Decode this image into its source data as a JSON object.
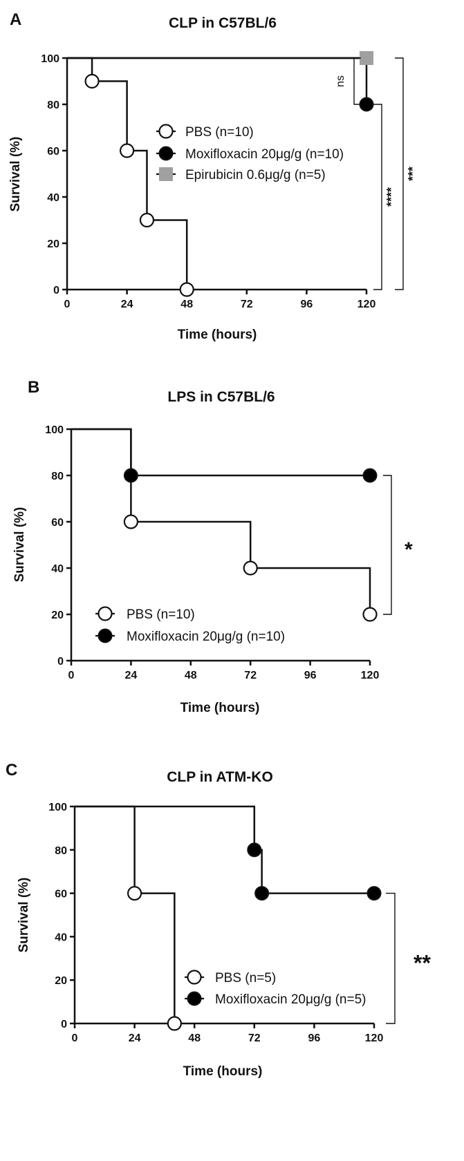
{
  "colors": {
    "axis": "#111111",
    "pbs_marker": "#ffffff",
    "moxi_marker": "#000000",
    "epi_marker": "#a0a0a0"
  },
  "chart_data": [
    {
      "type": "line",
      "panel": "A",
      "title": "CLP in C57BL/6",
      "xlabel": "Time (hours)",
      "ylabel": "Survival (%)",
      "xlim": [
        0,
        120
      ],
      "ylim": [
        0,
        100
      ],
      "xticks": [
        0,
        24,
        48,
        72,
        96,
        120
      ],
      "yticks": [
        0,
        20,
        40,
        60,
        80,
        100
      ],
      "legend_position": "center",
      "series": [
        {
          "name": "PBS (n=10)",
          "marker": "open-circle",
          "x": [
            0,
            10,
            24,
            32,
            48
          ],
          "y": [
            100,
            90,
            60,
            30,
            0
          ],
          "censor_x": [
            10,
            24,
            32,
            48
          ],
          "censor_y": [
            90,
            60,
            30,
            0
          ]
        },
        {
          "name": "Moxifloxacin 20μg/g (n=10)",
          "marker": "filled-circle",
          "x": [
            0,
            120
          ],
          "y": [
            100,
            80
          ],
          "censor_x": [
            120
          ],
          "censor_y": [
            80
          ]
        },
        {
          "name": "Epirubicin 0.6μg/g (n=5)",
          "marker": "gray-square",
          "x": [
            0,
            120
          ],
          "y": [
            100,
            100
          ],
          "censor_x": [
            120
          ],
          "censor_y": [
            100
          ]
        }
      ],
      "significance": [
        {
          "label": "ns",
          "y_top": 100,
          "y_bottom": 80
        },
        {
          "label": "****",
          "y_top": 80,
          "y_bottom": 0
        },
        {
          "label": "***",
          "y_top": 100,
          "y_bottom": 0
        }
      ]
    },
    {
      "type": "line",
      "panel": "B",
      "title": "LPS in C57BL/6",
      "xlabel": "Time (hours)",
      "ylabel": "Survival (%)",
      "xlim": [
        0,
        120
      ],
      "ylim": [
        0,
        100
      ],
      "xticks": [
        0,
        24,
        48,
        72,
        96,
        120
      ],
      "yticks": [
        0,
        20,
        40,
        60,
        80,
        100
      ],
      "legend_position": "bottom-left",
      "series": [
        {
          "name": "PBS (n=10)",
          "marker": "open-circle",
          "x": [
            0,
            24,
            72,
            120
          ],
          "y": [
            100,
            60,
            40,
            20
          ],
          "censor_x": [
            24,
            72,
            120
          ],
          "censor_y": [
            60,
            40,
            20
          ]
        },
        {
          "name": "Moxifloxacin 20μg/g (n=10)",
          "marker": "filled-circle",
          "x": [
            0,
            24,
            120
          ],
          "y": [
            100,
            80,
            80
          ],
          "censor_x": [
            24,
            120
          ],
          "censor_y": [
            80,
            80
          ]
        }
      ],
      "significance": [
        {
          "label": "*",
          "y_top": 80,
          "y_bottom": 20
        }
      ]
    },
    {
      "type": "line",
      "panel": "C",
      "title": "CLP in ATM-KO",
      "xlabel": "Time (hours)",
      "ylabel": "Survival (%)",
      "xlim": [
        0,
        120
      ],
      "ylim": [
        0,
        100
      ],
      "xticks": [
        0,
        24,
        48,
        72,
        96,
        120
      ],
      "yticks": [
        0,
        20,
        40,
        60,
        80,
        100
      ],
      "legend_position": "bottom-center",
      "series": [
        {
          "name": "PBS (n=5)",
          "marker": "open-circle",
          "x": [
            0,
            24,
            40
          ],
          "y": [
            100,
            60,
            0
          ],
          "censor_x": [
            24,
            40
          ],
          "censor_y": [
            60,
            0
          ]
        },
        {
          "name": "Moxifloxacin 20μg/g (n=5)",
          "marker": "filled-circle",
          "x": [
            0,
            72,
            75,
            120
          ],
          "y": [
            100,
            80,
            60,
            60
          ],
          "censor_x": [
            72,
            75,
            120
          ],
          "censor_y": [
            80,
            60,
            60
          ]
        }
      ],
      "significance": [
        {
          "label": "**",
          "y_top": 60,
          "y_bottom": 0
        }
      ]
    }
  ]
}
